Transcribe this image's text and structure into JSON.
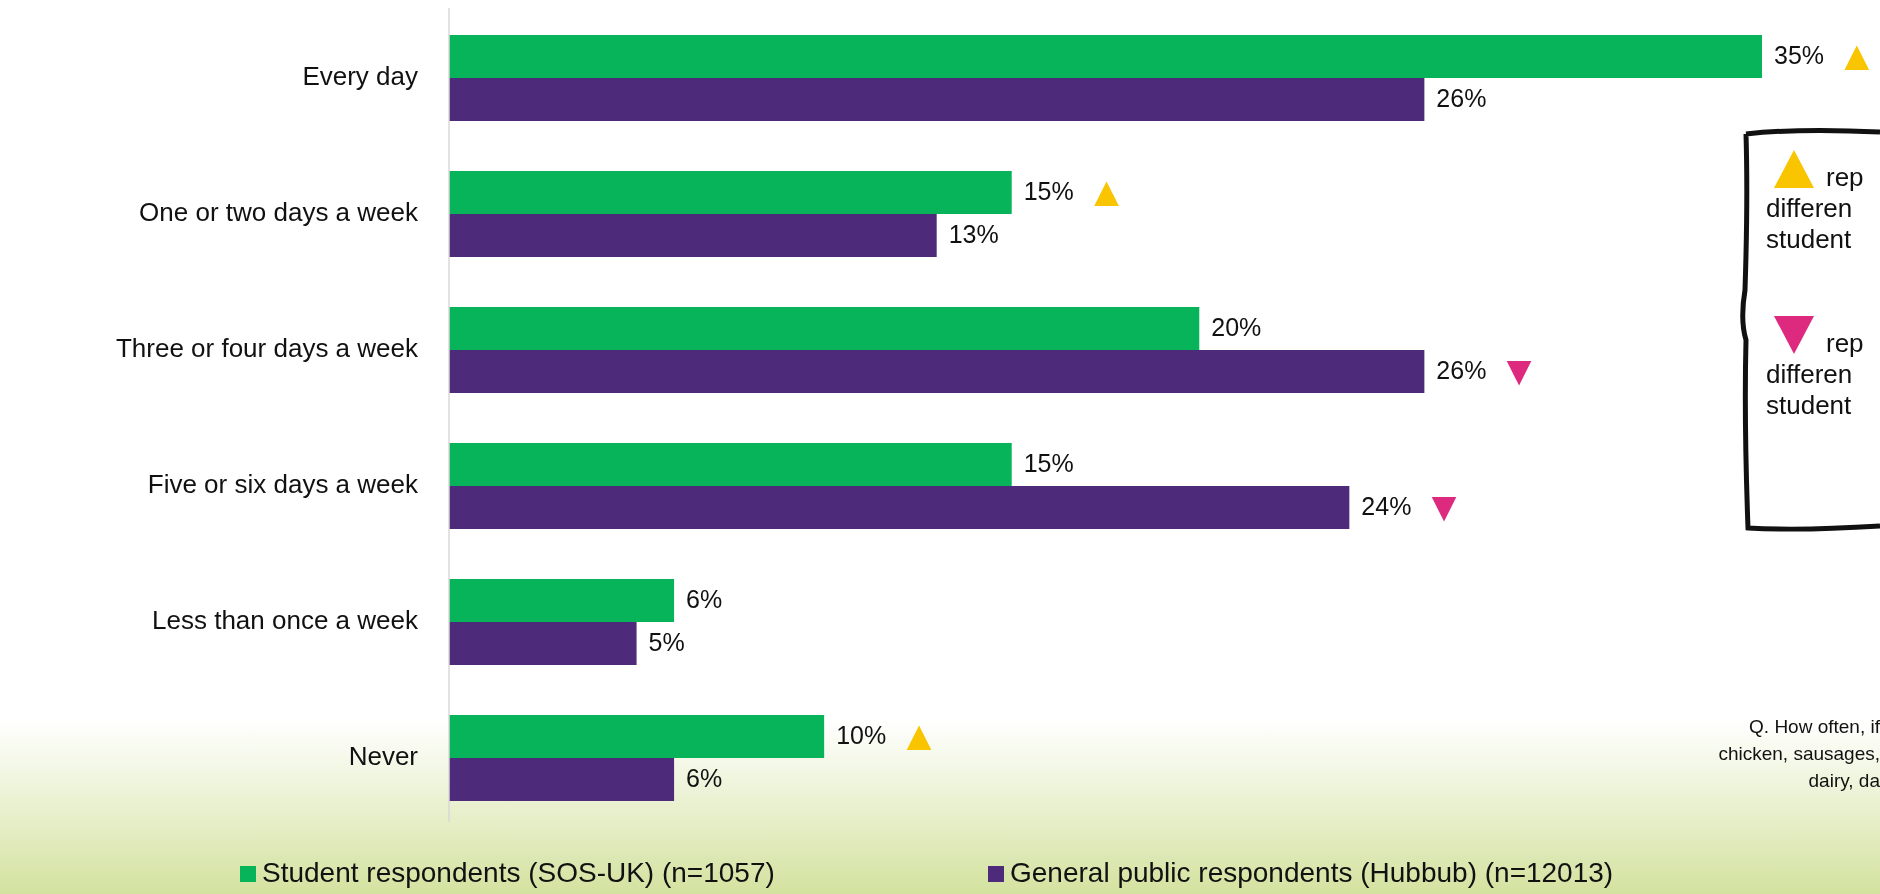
{
  "chart_data": {
    "type": "bar",
    "orientation": "horizontal",
    "legend": "bottom",
    "categories": [
      "Every day",
      "One or two days a week",
      "Three or four days a week",
      "Five or six days a week",
      "Less than once a week",
      "Never"
    ],
    "series": [
      {
        "name": "Student respondents (SOS-UK) (n=1057)",
        "color": "#07b45a",
        "values": [
          35,
          15,
          20,
          15,
          6,
          10
        ],
        "value_labels": [
          "35%",
          "15%",
          "20%",
          "15%",
          "6%",
          "10%"
        ]
      },
      {
        "name": "General public respondents (Hubbub) (n=12013)",
        "color": "#4e2a7b",
        "values": [
          26,
          13,
          26,
          24,
          5,
          6
        ],
        "value_labels": [
          "26%",
          "13%",
          "26%",
          "24%",
          "5%",
          "6%"
        ]
      }
    ],
    "annotations": [
      {
        "text": "▲",
        "x": 35,
        "y": "Every day"
      },
      {
        "text": "▲",
        "x": 15,
        "y": "One or two days a week"
      },
      {
        "text": "▼",
        "x": 26,
        "y": "Three or four days a week"
      },
      {
        "text": "▼",
        "x": 24,
        "y": "Five or six days a week"
      },
      {
        "text": "▲",
        "x": 10,
        "y": "Never"
      },
      "rep\ndifferen\nstudent",
      "rep\ndifferen\nstudent",
      "Q. How often, if\nchicken, sausages,\ndairy, da"
    ]
  }
}
